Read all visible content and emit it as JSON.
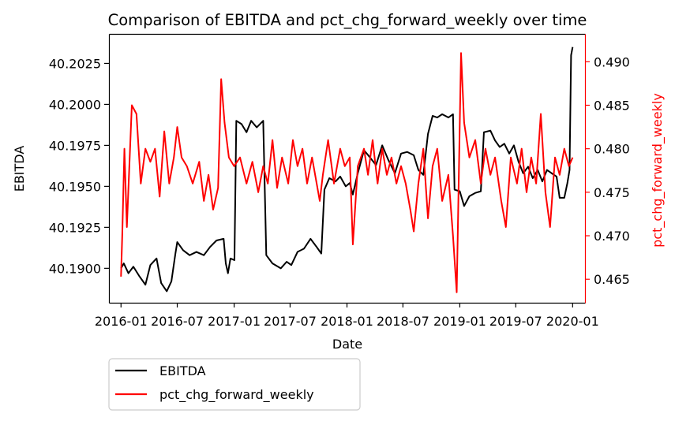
{
  "chart_data": {
    "type": "line",
    "title": "Comparison of EBITDA and pct_chg_forward_weekly over time",
    "xlabel": "Date",
    "ylabel_left": "EBITDA",
    "ylabel_right": "pct_chg_forward_weekly",
    "x_range": [
      "2015-11-23",
      "2020-02-10"
    ],
    "x_ticks": [
      "2016-01",
      "2016-07",
      "2017-01",
      "2017-07",
      "2018-01",
      "2018-07",
      "2019-01",
      "2019-07",
      "2020-01"
    ],
    "y_left_range": [
      40.1879,
      40.2043
    ],
    "y_left_ticks": [
      "40.1900",
      "40.1925",
      "40.1950",
      "40.1975",
      "40.2000",
      "40.2025"
    ],
    "y_right_range": [
      0.4623,
      0.4932
    ],
    "y_right_ticks": [
      "0.465",
      "0.470",
      "0.475",
      "0.480",
      "0.485",
      "0.490"
    ],
    "legend_position": "below-left",
    "series": [
      {
        "name": "EBITDA",
        "axis": "left",
        "color": "#000000",
        "points": [
          [
            "2016-01-01",
            40.19
          ],
          [
            "2016-01-10",
            40.1903
          ],
          [
            "2016-01-25",
            40.1897
          ],
          [
            "2016-02-10",
            40.1901
          ],
          [
            "2016-03-01",
            40.1895
          ],
          [
            "2016-03-20",
            40.189
          ],
          [
            "2016-04-05",
            40.1902
          ],
          [
            "2016-04-25",
            40.1906
          ],
          [
            "2016-05-10",
            40.1891
          ],
          [
            "2016-05-28",
            40.1886
          ],
          [
            "2016-06-12",
            40.1892
          ],
          [
            "2016-06-25",
            40.1909
          ],
          [
            "2016-07-01",
            40.1916
          ],
          [
            "2016-07-20",
            40.1911
          ],
          [
            "2016-08-10",
            40.1908
          ],
          [
            "2016-09-01",
            40.191
          ],
          [
            "2016-09-25",
            40.1908
          ],
          [
            "2016-10-15",
            40.1913
          ],
          [
            "2016-11-05",
            40.1917
          ],
          [
            "2016-11-28",
            40.1918
          ],
          [
            "2016-12-05",
            40.1903
          ],
          [
            "2016-12-12",
            40.1897
          ],
          [
            "2016-12-20",
            40.1906
          ],
          [
            "2017-01-02",
            40.1905
          ],
          [
            "2017-01-08",
            40.199
          ],
          [
            "2017-01-25",
            40.1988
          ],
          [
            "2017-02-10",
            40.1983
          ],
          [
            "2017-02-25",
            40.199
          ],
          [
            "2017-03-15",
            40.1986
          ],
          [
            "2017-04-05",
            40.199
          ],
          [
            "2017-04-15",
            40.1908
          ],
          [
            "2017-05-05",
            40.1903
          ],
          [
            "2017-06-01",
            40.19
          ],
          [
            "2017-06-20",
            40.1904
          ],
          [
            "2017-07-05",
            40.1902
          ],
          [
            "2017-07-25",
            40.191
          ],
          [
            "2017-08-15",
            40.1912
          ],
          [
            "2017-09-05",
            40.1918
          ],
          [
            "2017-09-25",
            40.1913
          ],
          [
            "2017-10-10",
            40.1909
          ],
          [
            "2017-10-20",
            40.1948
          ],
          [
            "2017-11-05",
            40.1955
          ],
          [
            "2017-11-25",
            40.1953
          ],
          [
            "2017-12-10",
            40.1956
          ],
          [
            "2017-12-28",
            40.195
          ],
          [
            "2018-01-10",
            40.1952
          ],
          [
            "2018-01-20",
            40.1945
          ],
          [
            "2018-02-05",
            40.1958
          ],
          [
            "2018-02-25",
            40.1972
          ],
          [
            "2018-03-15",
            40.1968
          ],
          [
            "2018-04-05",
            40.1963
          ],
          [
            "2018-04-25",
            40.1975
          ],
          [
            "2018-05-15",
            40.1966
          ],
          [
            "2018-06-05",
            40.1958
          ],
          [
            "2018-06-25",
            40.197
          ],
          [
            "2018-07-15",
            40.1971
          ],
          [
            "2018-08-05",
            40.1969
          ],
          [
            "2018-08-20",
            40.196
          ],
          [
            "2018-09-05",
            40.1957
          ],
          [
            "2018-09-20",
            40.1982
          ],
          [
            "2018-10-05",
            40.1993
          ],
          [
            "2018-10-20",
            40.1992
          ],
          [
            "2018-11-05",
            40.1994
          ],
          [
            "2018-11-25",
            40.1992
          ],
          [
            "2018-12-10",
            40.1994
          ],
          [
            "2018-12-15",
            40.1948
          ],
          [
            "2019-01-01",
            40.1947
          ],
          [
            "2019-01-15",
            40.1938
          ],
          [
            "2019-02-01",
            40.1944
          ],
          [
            "2019-02-20",
            40.1946
          ],
          [
            "2019-03-10",
            40.1947
          ],
          [
            "2019-03-20",
            40.1983
          ],
          [
            "2019-04-10",
            40.1984
          ],
          [
            "2019-04-25",
            40.1978
          ],
          [
            "2019-05-10",
            40.1974
          ],
          [
            "2019-05-25",
            40.1976
          ],
          [
            "2019-06-10",
            40.197
          ],
          [
            "2019-06-25",
            40.1975
          ],
          [
            "2019-07-10",
            40.1965
          ],
          [
            "2019-07-25",
            40.1958
          ],
          [
            "2019-08-10",
            40.1962
          ],
          [
            "2019-08-25",
            40.1955
          ],
          [
            "2019-09-10",
            40.196
          ],
          [
            "2019-09-25",
            40.1953
          ],
          [
            "2019-10-10",
            40.196
          ],
          [
            "2019-10-25",
            40.1958
          ],
          [
            "2019-11-10",
            40.1956
          ],
          [
            "2019-11-20",
            40.1943
          ],
          [
            "2019-12-05",
            40.1943
          ],
          [
            "2019-12-15",
            40.1952
          ],
          [
            "2019-12-22",
            40.196
          ],
          [
            "2019-12-27",
            40.203
          ],
          [
            "2020-01-01",
            40.2035
          ]
        ]
      },
      {
        "name": "pct_chg_forward_weekly",
        "axis": "right",
        "color": "#ff0000",
        "points": [
          [
            "2016-01-01",
            0.4653
          ],
          [
            "2016-01-05",
            0.47
          ],
          [
            "2016-01-12",
            0.48
          ],
          [
            "2016-01-20",
            0.471
          ],
          [
            "2016-01-28",
            0.478
          ],
          [
            "2016-02-05",
            0.485
          ],
          [
            "2016-02-20",
            0.484
          ],
          [
            "2016-03-05",
            0.476
          ],
          [
            "2016-03-20",
            0.48
          ],
          [
            "2016-04-05",
            0.4785
          ],
          [
            "2016-04-20",
            0.48
          ],
          [
            "2016-05-05",
            0.4745
          ],
          [
            "2016-05-20",
            0.482
          ],
          [
            "2016-06-05",
            0.476
          ],
          [
            "2016-06-20",
            0.479
          ],
          [
            "2016-07-01",
            0.4825
          ],
          [
            "2016-07-15",
            0.479
          ],
          [
            "2016-08-01",
            0.478
          ],
          [
            "2016-08-20",
            0.476
          ],
          [
            "2016-09-10",
            0.4785
          ],
          [
            "2016-09-25",
            0.474
          ],
          [
            "2016-10-10",
            0.477
          ],
          [
            "2016-10-25",
            0.473
          ],
          [
            "2016-11-10",
            0.4755
          ],
          [
            "2016-11-20",
            0.488
          ],
          [
            "2016-12-01",
            0.483
          ],
          [
            "2016-12-15",
            0.479
          ],
          [
            "2017-01-01",
            0.478
          ],
          [
            "2017-01-20",
            0.479
          ],
          [
            "2017-02-10",
            0.476
          ],
          [
            "2017-03-01",
            0.4785
          ],
          [
            "2017-03-20",
            0.475
          ],
          [
            "2017-04-05",
            0.478
          ],
          [
            "2017-04-20",
            0.476
          ],
          [
            "2017-05-05",
            0.481
          ],
          [
            "2017-05-20",
            0.4755
          ],
          [
            "2017-06-05",
            0.479
          ],
          [
            "2017-06-25",
            0.476
          ],
          [
            "2017-07-10",
            0.481
          ],
          [
            "2017-07-25",
            0.478
          ],
          [
            "2017-08-10",
            0.48
          ],
          [
            "2017-08-25",
            0.476
          ],
          [
            "2017-09-10",
            0.479
          ],
          [
            "2017-09-25",
            0.476
          ],
          [
            "2017-10-05",
            0.474
          ],
          [
            "2017-10-15",
            0.477
          ],
          [
            "2017-11-01",
            0.481
          ],
          [
            "2017-11-20",
            0.476
          ],
          [
            "2017-12-10",
            0.48
          ],
          [
            "2017-12-25",
            0.478
          ],
          [
            "2018-01-10",
            0.479
          ],
          [
            "2018-01-20",
            0.469
          ],
          [
            "2018-02-05",
            0.478
          ],
          [
            "2018-02-25",
            0.48
          ],
          [
            "2018-03-10",
            0.477
          ],
          [
            "2018-03-25",
            0.481
          ],
          [
            "2018-04-10",
            0.476
          ],
          [
            "2018-04-25",
            0.48
          ],
          [
            "2018-05-10",
            0.477
          ],
          [
            "2018-05-25",
            0.479
          ],
          [
            "2018-06-10",
            0.476
          ],
          [
            "2018-06-25",
            0.478
          ],
          [
            "2018-07-10",
            0.476
          ],
          [
            "2018-07-25",
            0.473
          ],
          [
            "2018-08-05",
            0.4705
          ],
          [
            "2018-08-20",
            0.476
          ],
          [
            "2018-09-05",
            0.48
          ],
          [
            "2018-09-20",
            0.472
          ],
          [
            "2018-10-05",
            0.478
          ],
          [
            "2018-10-20",
            0.48
          ],
          [
            "2018-11-05",
            0.474
          ],
          [
            "2018-11-25",
            0.477
          ],
          [
            "2018-12-10",
            0.47
          ],
          [
            "2018-12-22",
            0.4635
          ],
          [
            "2019-01-05",
            0.491
          ],
          [
            "2019-01-15",
            0.483
          ],
          [
            "2019-02-01",
            0.479
          ],
          [
            "2019-02-20",
            0.481
          ],
          [
            "2019-03-10",
            0.476
          ],
          [
            "2019-03-25",
            0.48
          ],
          [
            "2019-04-10",
            0.477
          ],
          [
            "2019-04-25",
            0.479
          ],
          [
            "2019-05-15",
            0.474
          ],
          [
            "2019-05-30",
            0.471
          ],
          [
            "2019-06-15",
            0.479
          ],
          [
            "2019-07-05",
            0.476
          ],
          [
            "2019-07-20",
            0.48
          ],
          [
            "2019-08-05",
            0.475
          ],
          [
            "2019-08-20",
            0.479
          ],
          [
            "2019-09-05",
            0.476
          ],
          [
            "2019-09-20",
            0.484
          ],
          [
            "2019-10-05",
            0.475
          ],
          [
            "2019-10-20",
            0.471
          ],
          [
            "2019-11-05",
            0.479
          ],
          [
            "2019-11-20",
            0.477
          ],
          [
            "2019-12-05",
            0.48
          ],
          [
            "2019-12-20",
            0.478
          ],
          [
            "2020-01-01",
            0.479
          ]
        ]
      }
    ]
  }
}
